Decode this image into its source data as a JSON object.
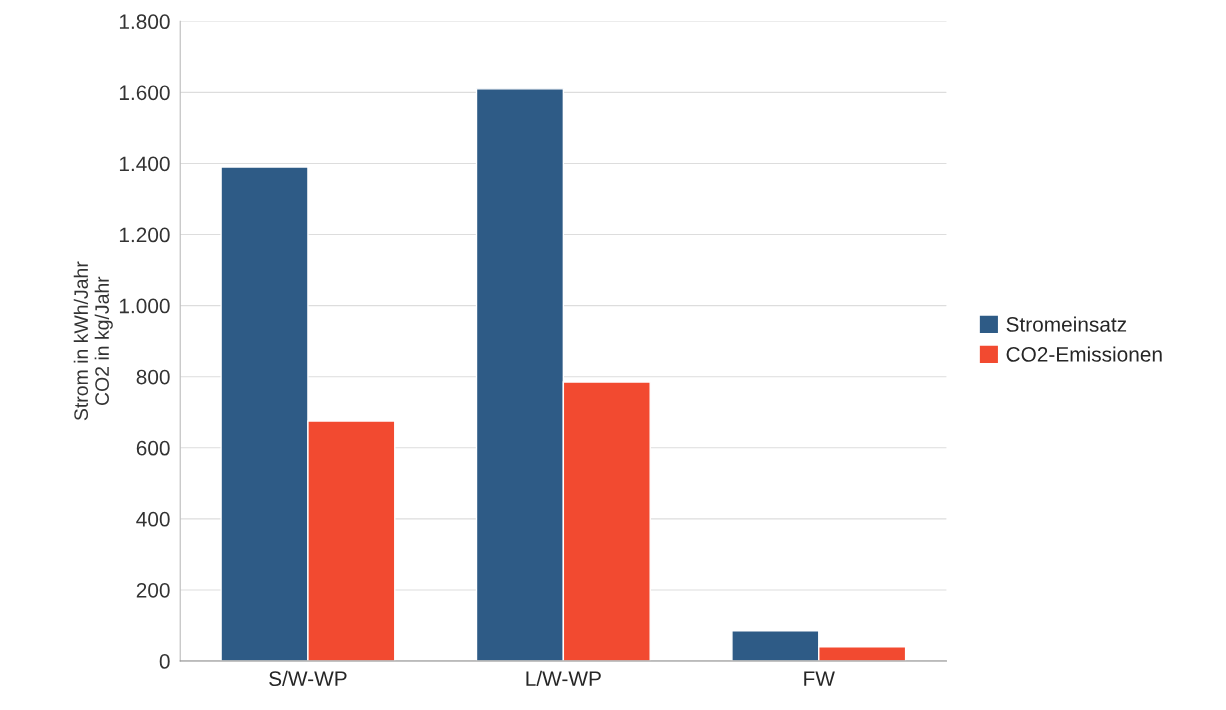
{
  "chart_data": {
    "type": "bar",
    "categories": [
      "S/W-WP",
      "L/W-WP",
      "FW"
    ],
    "series": [
      {
        "name": "Stromeinsatz",
        "color": "#2e5b86",
        "values": [
          1390,
          1610,
          85
        ]
      },
      {
        "name": "CO2-Emissionen",
        "color": "#f24a30",
        "values": [
          675,
          785,
          40
        ]
      }
    ],
    "ylabel": "Strom in kWh/Jahr\nCO2 in kg/Jahr",
    "ylim": [
      0,
      1800
    ],
    "yticks": [
      0,
      200,
      400,
      600,
      800,
      {
        "value": 1000,
        "label": "1.000"
      },
      {
        "value": 1200,
        "label": "1.200"
      },
      {
        "value": 1400,
        "label": "1.400"
      },
      {
        "value": 1600,
        "label": "1.600"
      },
      {
        "value": 1800,
        "label": "1.800"
      }
    ],
    "grid": "y",
    "legend": "right"
  }
}
